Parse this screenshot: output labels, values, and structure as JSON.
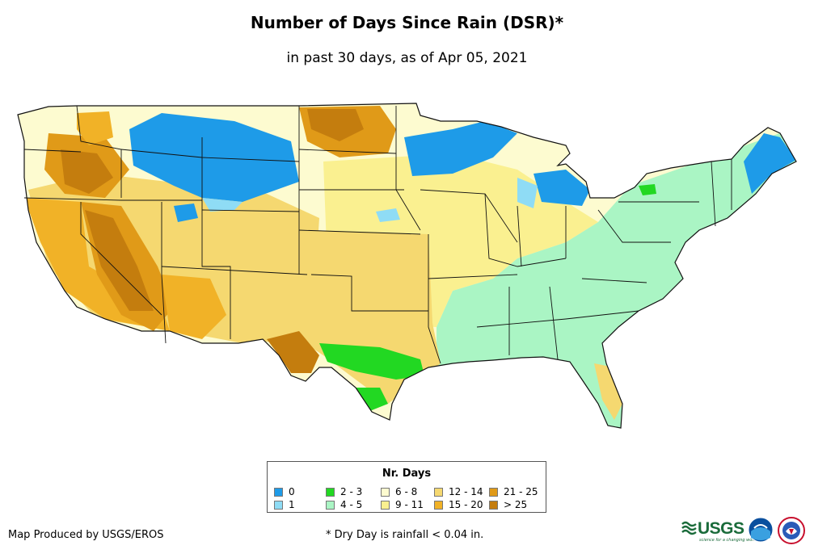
{
  "title": "Number of Days Since Rain (DSR)*",
  "subtitle": "in past 30 days, as of Apr 05, 2021",
  "legend": {
    "title": "Nr. Days",
    "items": [
      {
        "label": "0",
        "color": "#1e9be8"
      },
      {
        "label": "1",
        "color": "#8fdcf5"
      },
      {
        "label": "2 - 3",
        "color": "#22d822"
      },
      {
        "label": "4 - 5",
        "color": "#aaf5c4"
      },
      {
        "label": "6 - 8",
        "color": "#fdfbd0"
      },
      {
        "label": "9 - 11",
        "color": "#faf090"
      },
      {
        "label": "12 - 14",
        "color": "#f5d870"
      },
      {
        "label": "15 - 20",
        "color": "#f1b227"
      },
      {
        "label": "21 - 25",
        "color": "#e09a18"
      },
      {
        "label": "> 25",
        "color": "#c47d0e"
      }
    ]
  },
  "footer": {
    "producer": "Map Produced by USGS/EROS",
    "footnote": "* Dry Day is rainfall < 0.04 in."
  },
  "logos": {
    "usgs": "USGS",
    "usgs_tagline": "science for a changing world",
    "noaa": "NOAA"
  }
}
